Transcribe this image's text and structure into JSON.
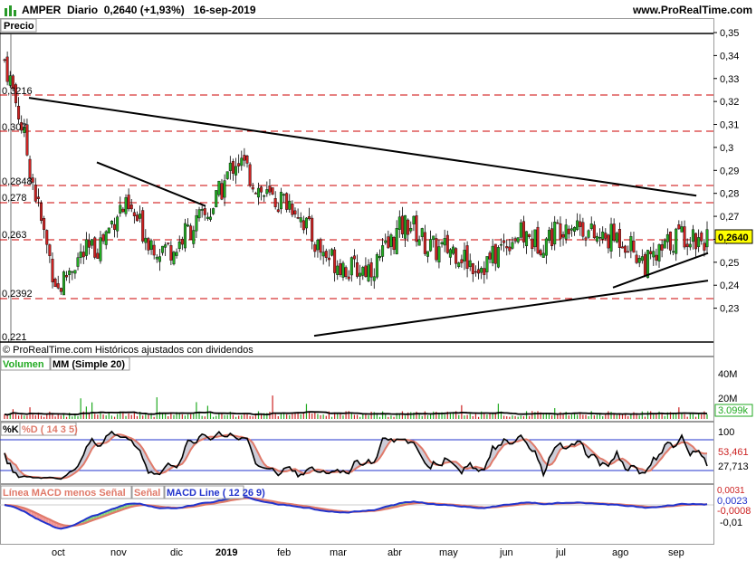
{
  "header": {
    "symbol": "AMPER",
    "period": "Diario",
    "price": "0,2640",
    "change": "(+1,93%)",
    "date": "16-sep-2019",
    "site": "www.ProRealTime.com"
  },
  "price_panel": {
    "title": "Precio",
    "footer": "© ProRealTime.com  Históricos ajustados con dividendos",
    "last_label": "0,2640",
    "left_levels": [
      "0,3216",
      "0,307",
      "0,2848",
      "0,278",
      "0,263",
      "0,2392",
      "0,221"
    ]
  },
  "volume_panel": {
    "label1": "Volumen",
    "label2": "MM (Simple 20)",
    "ticks": [
      "40M",
      "20M"
    ],
    "last": "3.099k"
  },
  "stoch_panel": {
    "label_k": "%K",
    "label_d": "%D ( 14 3 5)",
    "ticks": [
      "100"
    ],
    "value_d": "53,461",
    "value_k": "27,713"
  },
  "macd_panel": {
    "label_hist": "Línea MACD menos Señal",
    "label_signal": "Señal",
    "label_macd": "MACD Line ( 12 26 9)",
    "ticks": [
      "-0,01"
    ],
    "value_top": "0,0023",
    "value_hist": "-0,0008",
    "value_cut": "0,0031"
  },
  "x_axis": {
    "labels": [
      "oct",
      "nov",
      "dic",
      "2019",
      "feb",
      "mar",
      "abr",
      "may",
      "jun",
      "jul",
      "ago",
      "sep"
    ]
  },
  "colors": {
    "up": "#22aa22",
    "down": "#cc2222",
    "dashed": "#cc0000",
    "trend": "#000000",
    "last_box": "#ffff00",
    "stoch_k": "#000000",
    "stoch_d": "#e07a6a",
    "macd_line": "#2233cc",
    "macd_signal": "#e07a6a"
  },
  "chart_data": {
    "type": "candlestick",
    "period": "daily",
    "x_range": [
      "2018-09-17",
      "2019-09-16"
    ],
    "y_range": [
      0.22,
      0.35
    ],
    "y_ticks": [
      0.23,
      0.24,
      0.25,
      0.26,
      0.27,
      0.28,
      0.29,
      0.3,
      0.31,
      0.32,
      0.33,
      0.34,
      0.35
    ],
    "y_tick_labels": [
      "0,23",
      "0,24",
      "0,25",
      "0,26",
      "0,27",
      "0,28",
      "0,29",
      "0,3",
      "0,31",
      "0,32",
      "0,33",
      "0,34",
      "0,35"
    ],
    "horizontal_levels": [
      0.3216,
      0.307,
      0.2848,
      0.278,
      0.263,
      0.2392
    ],
    "box_top": 0.3475,
    "box_bottom": 0.221,
    "last_price": 0.264,
    "closes_monthly_approx": [
      {
        "month": "2018-09",
        "close": 0.305
      },
      {
        "month": "2018-10",
        "close": 0.238
      },
      {
        "month": "2018-11",
        "close": 0.272
      },
      {
        "month": "2018-12",
        "close": 0.254
      },
      {
        "month": "2019-01",
        "close": 0.292
      },
      {
        "month": "2019-02",
        "close": 0.271
      },
      {
        "month": "2019-03",
        "close": 0.243
      },
      {
        "month": "2019-04",
        "close": 0.265
      },
      {
        "month": "2019-05",
        "close": 0.249
      },
      {
        "month": "2019-06",
        "close": 0.261
      },
      {
        "month": "2019-07",
        "close": 0.266
      },
      {
        "month": "2019-08",
        "close": 0.252
      },
      {
        "month": "2019-09",
        "close": 0.264
      }
    ],
    "trendlines": [
      {
        "from": [
          "2018-10-01",
          0.3216
        ],
        "to": [
          "2019-09-10",
          0.279
        ]
      },
      {
        "from": [
          "2018-11-05",
          0.2935
        ],
        "to": [
          "2018-12-31",
          0.2745
        ]
      },
      {
        "from": [
          "2019-02-25",
          0.218
        ],
        "to": [
          "2019-09-16",
          0.242
        ]
      },
      {
        "from": [
          "2019-07-29",
          0.239
        ],
        "to": [
          "2019-09-16",
          0.254
        ]
      }
    ],
    "volume": {
      "ticks": [
        "40M",
        "20M"
      ],
      "ma_period": 20,
      "last": "3.099k"
    },
    "stochastic": {
      "params": "14 3 5",
      "last_k": 27.713,
      "last_d": 53.461
    },
    "macd": {
      "params": "12 26 9",
      "last_macd": 0.0023,
      "last_hist": -0.0008
    }
  }
}
